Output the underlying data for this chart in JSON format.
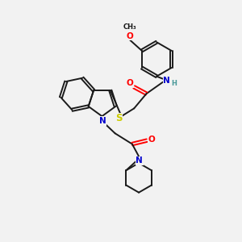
{
  "background_color": "#f2f2f2",
  "bond_color": "#1a1a1a",
  "atom_colors": {
    "O": "#ff0000",
    "N": "#0000cd",
    "S": "#cccc00",
    "C": "#1a1a1a",
    "H": "#4a9999"
  }
}
